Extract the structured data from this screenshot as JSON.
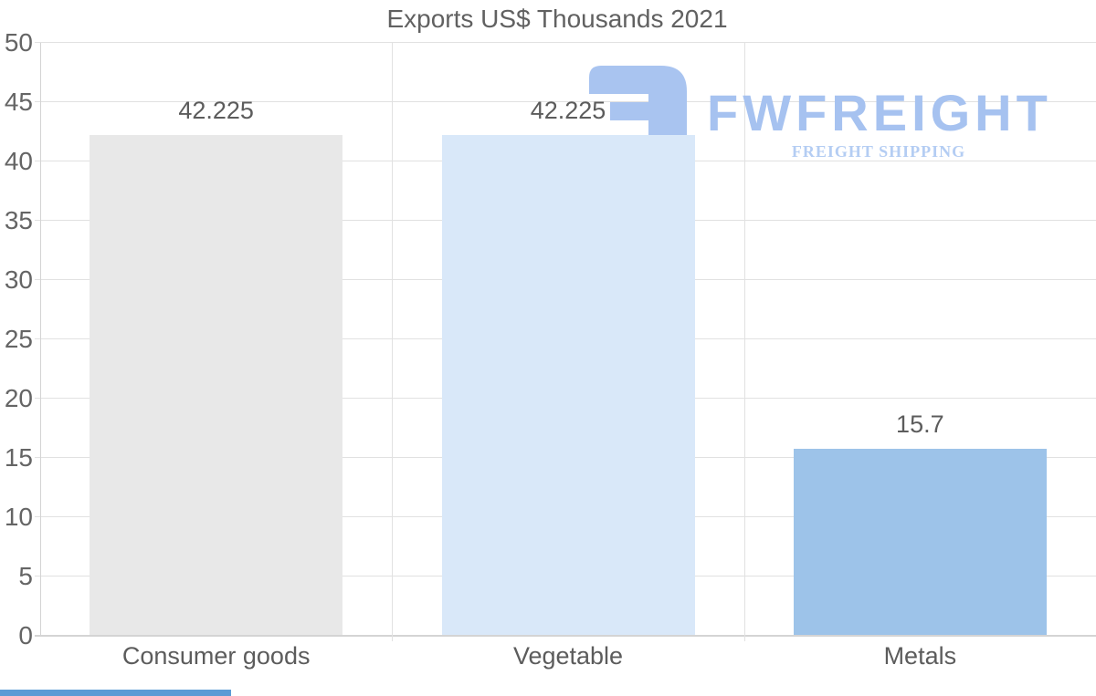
{
  "title": "Exports US$ Thousands 2021",
  "watermark": {
    "brand": "FWFREIGHT",
    "tagline": "FREIGHT SHIPPING",
    "icon": "fwfreight-logo-mark",
    "brand_color": "#a6c2f0",
    "tagline_color": "#b4cdf3",
    "icon_color": "#a9c4f0"
  },
  "chart_data": {
    "type": "bar",
    "title": "Exports US$ Thousands 2021",
    "categories": [
      "Consumer goods",
      "Vegetable",
      "Metals"
    ],
    "values": [
      42.225,
      42.225,
      15.7
    ],
    "value_labels": [
      "42.225",
      "42.225",
      "15.7"
    ],
    "bar_colors": [
      "#e8e8e8",
      "#d9e8f9",
      "#9dc3e9"
    ],
    "xlabel": "",
    "ylabel": "",
    "ylim": [
      0,
      50
    ],
    "yticks": [
      50,
      45,
      40,
      35,
      30,
      25,
      20,
      15,
      10,
      5,
      0
    ],
    "grid": true,
    "legend": "none"
  },
  "colors": {
    "background": "#ffffff",
    "gridline": "#e1e1e1",
    "axis_line": "#d4d4d4",
    "label_text": "#5c5c5c",
    "tick_text": "#656565",
    "title_text": "#616161",
    "bottom_strip": "#5b9bd5"
  }
}
